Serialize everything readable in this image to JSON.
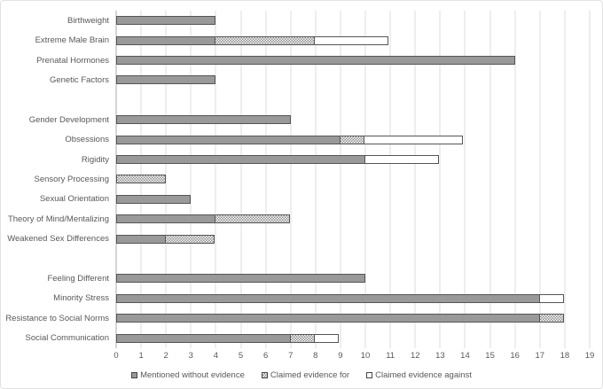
{
  "chart_data": {
    "type": "bar",
    "orientation": "horizontal",
    "stacked": true,
    "title": "",
    "xlabel": "",
    "ylabel": "",
    "xlim": [
      0,
      19
    ],
    "x_ticks": [
      0,
      1,
      2,
      3,
      4,
      5,
      6,
      7,
      8,
      9,
      10,
      11,
      12,
      13,
      14,
      15,
      16,
      17,
      18,
      19
    ],
    "grid": "vertical-only",
    "legend_position": "bottom-center",
    "series": [
      {
        "name": "Mentioned without evidence",
        "style": "solid",
        "fill": "#999999",
        "border": "#555555"
      },
      {
        "name": "Claimed evidence for",
        "style": "checker-pattern",
        "fill": "#8a8a8a",
        "background": "#ffffff",
        "border": "#555555"
      },
      {
        "name": "Claimed evidence against",
        "style": "outline",
        "fill": "#ffffff",
        "border": "#555555"
      }
    ],
    "groups": [
      {
        "rows": [
          {
            "label": "Birthweight",
            "values": [
              4,
              0,
              0
            ]
          },
          {
            "label": "Extreme Male Brain",
            "values": [
              4,
              4,
              3
            ]
          },
          {
            "label": "Prenatal Hormones",
            "values": [
              16,
              0,
              0
            ]
          },
          {
            "label": "Genetic Factors",
            "values": [
              4,
              0,
              0
            ]
          }
        ]
      },
      {
        "rows": [
          {
            "label": "Gender Development",
            "values": [
              7,
              0,
              0
            ]
          },
          {
            "label": "Obsessions",
            "values": [
              9,
              1,
              4
            ]
          },
          {
            "label": "Rigidity",
            "values": [
              10,
              0,
              3
            ]
          },
          {
            "label": "Sensory Processing",
            "values": [
              0,
              2,
              0
            ]
          },
          {
            "label": "Sexual Orientation",
            "values": [
              3,
              0,
              0
            ]
          },
          {
            "label": "Theory of Mind/Mentalizing",
            "values": [
              4,
              3,
              0
            ]
          },
          {
            "label": "Weakened Sex Differences",
            "values": [
              2,
              2,
              0
            ]
          }
        ]
      },
      {
        "rows": [
          {
            "label": "Feeling Different",
            "values": [
              10,
              0,
              0
            ]
          },
          {
            "label": "Minority Stress",
            "values": [
              17,
              0,
              1
            ]
          },
          {
            "label": "Resistance to Social Norms",
            "values": [
              17,
              1,
              0
            ]
          },
          {
            "label": "Social Communication",
            "values": [
              7,
              1,
              1
            ]
          }
        ]
      }
    ],
    "colors": {
      "gridline": "#dcdcdc",
      "axis_line": "#ababab",
      "text": "#595959",
      "figure_border": "#e2e2e2"
    }
  }
}
